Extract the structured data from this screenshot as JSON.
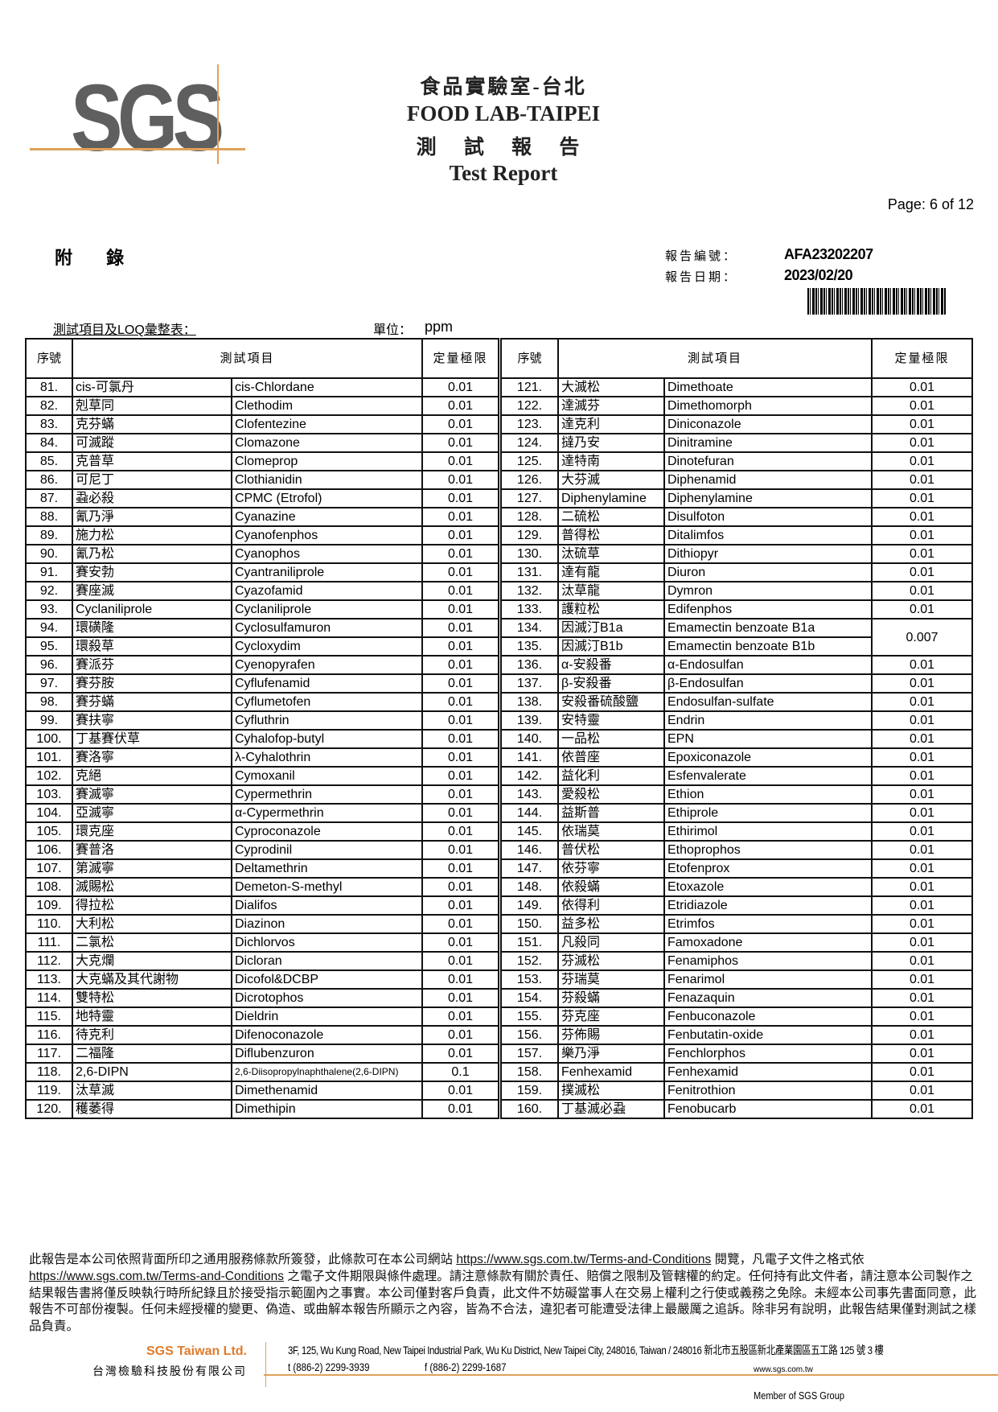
{
  "header": {
    "logo": "SGS",
    "title_zh": "食品實驗室-台北",
    "title_en": "FOOD LAB-TAIPEI",
    "report_zh": "測 試 報 告",
    "report_en": "Test Report",
    "page": "Page: 6 of 12",
    "appendix": "附 錄",
    "report_no_label": "報告編號：",
    "report_no": "AFA23202207",
    "report_date_label": "報告日期：",
    "report_date": "2023/02/20",
    "subheading": "測試項目及LOQ彙整表：",
    "unit_label": "單位：",
    "unit": "ppm"
  },
  "table": {
    "col_no": "序號",
    "col_item": "測試項目",
    "col_loq": "定量極限",
    "left_rows": [
      [
        "81.",
        "cis-可氯丹",
        "cis-Chlordane",
        "0.01"
      ],
      [
        "82.",
        "剋草同",
        "Clethodim",
        "0.01"
      ],
      [
        "83.",
        "克芬蟎",
        "Clofentezine",
        "0.01"
      ],
      [
        "84.",
        "可滅蹤",
        "Clomazone",
        "0.01"
      ],
      [
        "85.",
        "克普草",
        "Clomeprop",
        "0.01"
      ],
      [
        "86.",
        "可尼丁",
        "Clothianidin",
        "0.01"
      ],
      [
        "87.",
        "蝨必殺",
        "CPMC (Etrofol)",
        "0.01"
      ],
      [
        "88.",
        "氰乃淨",
        "Cyanazine",
        "0.01"
      ],
      [
        "89.",
        "施力松",
        "Cyanofenphos",
        "0.01"
      ],
      [
        "90.",
        "氰乃松",
        "Cyanophos",
        "0.01"
      ],
      [
        "91.",
        "賽安勃",
        "Cyantraniliprole",
        "0.01"
      ],
      [
        "92.",
        "賽座滅",
        "Cyazofamid",
        "0.01"
      ],
      [
        "93.",
        "Cyclaniliprole",
        "Cyclaniliprole",
        "0.01"
      ],
      [
        "94.",
        "環磺隆",
        "Cyclosulfamuron",
        "0.01"
      ],
      [
        "95.",
        "環殺草",
        "Cycloxydim",
        "0.01"
      ],
      [
        "96.",
        "賽派芬",
        "Cyenopyrafen",
        "0.01"
      ],
      [
        "97.",
        "賽芬胺",
        "Cyflufenamid",
        "0.01"
      ],
      [
        "98.",
        "賽芬蟎",
        "Cyflumetofen",
        "0.01"
      ],
      [
        "99.",
        "賽扶寧",
        "Cyfluthrin",
        "0.01"
      ],
      [
        "100.",
        "丁基賽伏草",
        "Cyhalofop-butyl",
        "0.01"
      ],
      [
        "101.",
        "賽洛寧",
        "λ-Cyhalothrin",
        "0.01"
      ],
      [
        "102.",
        "克絕",
        "Cymoxanil",
        "0.01"
      ],
      [
        "103.",
        "賽滅寧",
        "Cypermethrin",
        "0.01"
      ],
      [
        "104.",
        "亞滅寧",
        "α-Cypermethrin",
        "0.01"
      ],
      [
        "105.",
        "環克座",
        "Cyproconazole",
        "0.01"
      ],
      [
        "106.",
        "賽普洛",
        "Cyprodinil",
        "0.01"
      ],
      [
        "107.",
        "第滅寧",
        "Deltamethrin",
        "0.01"
      ],
      [
        "108.",
        "滅賜松",
        "Demeton-S-methyl",
        "0.01"
      ],
      [
        "109.",
        "得拉松",
        "Dialifos",
        "0.01"
      ],
      [
        "110.",
        "大利松",
        "Diazinon",
        "0.01"
      ],
      [
        "111.",
        "二氯松",
        "Dichlorvos",
        "0.01"
      ],
      [
        "112.",
        "大克爛",
        "Dicloran",
        "0.01"
      ],
      [
        "113.",
        "大克蟎及其代謝物",
        "Dicofol&DCBP",
        "0.01"
      ],
      [
        "114.",
        "雙特松",
        "Dicrotophos",
        "0.01"
      ],
      [
        "115.",
        "地特靈",
        "Dieldrin",
        "0.01"
      ],
      [
        "116.",
        "待克利",
        "Difenoconazole",
        "0.01"
      ],
      [
        "117.",
        "二福隆",
        "Diflubenzuron",
        "0.01"
      ],
      [
        "118.",
        "2,6-DIPN",
        "2,6-Diisopropylnaphthalene(2,6-DIPN)",
        "0.1"
      ],
      [
        "119.",
        "汰草滅",
        "Dimethenamid",
        "0.01"
      ],
      [
        "120.",
        "穫萎得",
        "Dimethipin",
        "0.01"
      ]
    ],
    "right_rows": [
      [
        "121.",
        "大滅松",
        "Dimethoate",
        "0.01"
      ],
      [
        "122.",
        "達滅芬",
        "Dimethomorph",
        "0.01"
      ],
      [
        "123.",
        "達克利",
        "Diniconazole",
        "0.01"
      ],
      [
        "124.",
        "撻乃安",
        "Dinitramine",
        "0.01"
      ],
      [
        "125.",
        "達特南",
        "Dinotefuran",
        "0.01"
      ],
      [
        "126.",
        "大芬滅",
        "Diphenamid",
        "0.01"
      ],
      [
        "127.",
        "Diphenylamine",
        "Diphenylamine",
        "0.01"
      ],
      [
        "128.",
        "二硫松",
        "Disulfoton",
        "0.01"
      ],
      [
        "129.",
        "普得松",
        "Ditalimfos",
        "0.01"
      ],
      [
        "130.",
        "汰硫草",
        "Dithiopyr",
        "0.01"
      ],
      [
        "131.",
        "達有龍",
        "Diuron",
        "0.01"
      ],
      [
        "132.",
        "汰草龍",
        "Dymron",
        "0.01"
      ],
      [
        "133.",
        "護粒松",
        "Edifenphos",
        "0.01"
      ],
      [
        "134.",
        "因滅汀B1a",
        "Emamectin benzoate B1a",
        "0.007"
      ],
      [
        "135.",
        "因滅汀B1b",
        "Emamectin benzoate B1b",
        null
      ],
      [
        "136.",
        "α-安殺番",
        "α-Endosulfan",
        "0.01"
      ],
      [
        "137.",
        "β-安殺番",
        "β-Endosulfan",
        "0.01"
      ],
      [
        "138.",
        "安殺番硫酸鹽",
        "Endosulfan-sulfate",
        "0.01"
      ],
      [
        "139.",
        "安特靈",
        "Endrin",
        "0.01"
      ],
      [
        "140.",
        "一品松",
        "EPN",
        "0.01"
      ],
      [
        "141.",
        "依普座",
        "Epoxiconazole",
        "0.01"
      ],
      [
        "142.",
        "益化利",
        "Esfenvalerate",
        "0.01"
      ],
      [
        "143.",
        "愛殺松",
        "Ethion",
        "0.01"
      ],
      [
        "144.",
        "益斯普",
        "Ethiprole",
        "0.01"
      ],
      [
        "145.",
        "依瑞莫",
        "Ethirimol",
        "0.01"
      ],
      [
        "146.",
        "普伏松",
        "Ethoprophos",
        "0.01"
      ],
      [
        "147.",
        "依芬寧",
        "Etofenprox",
        "0.01"
      ],
      [
        "148.",
        "依殺蟎",
        "Etoxazole",
        "0.01"
      ],
      [
        "149.",
        "依得利",
        "Etridiazole",
        "0.01"
      ],
      [
        "150.",
        "益多松",
        "Etrimfos",
        "0.01"
      ],
      [
        "151.",
        "凡殺同",
        "Famoxadone",
        "0.01"
      ],
      [
        "152.",
        "芬滅松",
        "Fenamiphos",
        "0.01"
      ],
      [
        "153.",
        "芬瑞莫",
        "Fenarimol",
        "0.01"
      ],
      [
        "154.",
        "芬殺蟎",
        "Fenazaquin",
        "0.01"
      ],
      [
        "155.",
        "芬克座",
        "Fenbuconazole",
        "0.01"
      ],
      [
        "156.",
        "芬佈賜",
        "Fenbutatin-oxide",
        "0.01"
      ],
      [
        "157.",
        "樂乃淨",
        "Fenchlorphos",
        "0.01"
      ],
      [
        "158.",
        "Fenhexamid",
        "Fenhexamid",
        "0.01"
      ],
      [
        "159.",
        "撲滅松",
        "Fenitrothion",
        "0.01"
      ],
      [
        "160.",
        "丁基滅必蝨",
        "Fenobucarb",
        "0.01"
      ]
    ]
  },
  "footer": {
    "disclaimer_1": "此報告是本公司依照背面所印之通用服務條款所簽發，此條款可在本公司網站 ",
    "link_1": "https://www.sgs.com.tw/Terms-and-Conditions",
    "disclaimer_2": " 閱覽，凡電子文件之格式依",
    "link_2": "https://www.sgs.com.tw/Terms-and-Conditions",
    "disclaimer_3": " 之電子文件期限與條件處理。請注意條款有關於責任、賠償之限制及管轄權的約定。任何持有此文件者，請注意本公司製作之結果報告書將僅反映執行時所紀錄且於接受指示範圍內之事實。本公司僅對客戶負責，此文件不妨礙當事人在交易上權利之行使或義務之免除。未經本公司事先書面同意，此報告不可部份複製。任何未經授權的變更、偽造、或曲解本報告所顯示之內容，皆為不合法，違犯者可能遭受法律上最嚴厲之追訴。除非另有說明，此報告結果僅對測試之樣品負責。",
    "company_en": "SGS Taiwan Ltd.",
    "company_zh": "台灣檢驗科技股份有限公司",
    "address": "3F, 125, Wu Kung Road, New Taipei Industrial Park, Wu Ku District, New Taipei City, 248016, Taiwan / 248016 新北市五股區新北產業園區五工路 125 號 3 樓",
    "tel": "t (886-2) 2299-3939",
    "fax": "f (886-2) 2299-1687",
    "website": "www.sgs.com.tw",
    "member": "Member of SGS Group"
  },
  "colors": {
    "logo_gray": "#5f5f5f",
    "accent_orange": "#e0a15a",
    "company_orange": "#e07b2a"
  }
}
